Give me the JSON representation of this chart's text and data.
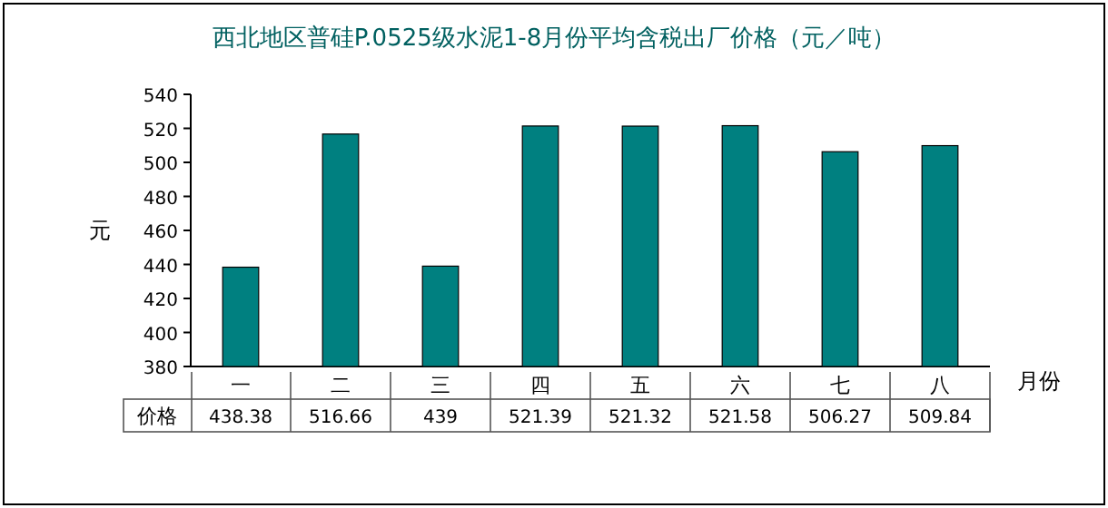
{
  "chart_data": {
    "type": "bar",
    "title": "西北地区普硅P.0525级水泥1-8月份平均含税出厂价格（元／吨）",
    "ylabel": "元",
    "xlabel": "月份",
    "categories": [
      "一",
      "二",
      "三",
      "四",
      "五",
      "六",
      "七",
      "八"
    ],
    "series": [
      {
        "name": "价格",
        "color": "#008080",
        "values": [
          438.38,
          516.66,
          439,
          521.39,
          521.32,
          521.58,
          506.27,
          509.84
        ]
      }
    ],
    "ylim": [
      380,
      540
    ],
    "yticks": [
      380,
      400,
      420,
      440,
      460,
      480,
      500,
      520,
      540
    ],
    "data_labels": true
  }
}
